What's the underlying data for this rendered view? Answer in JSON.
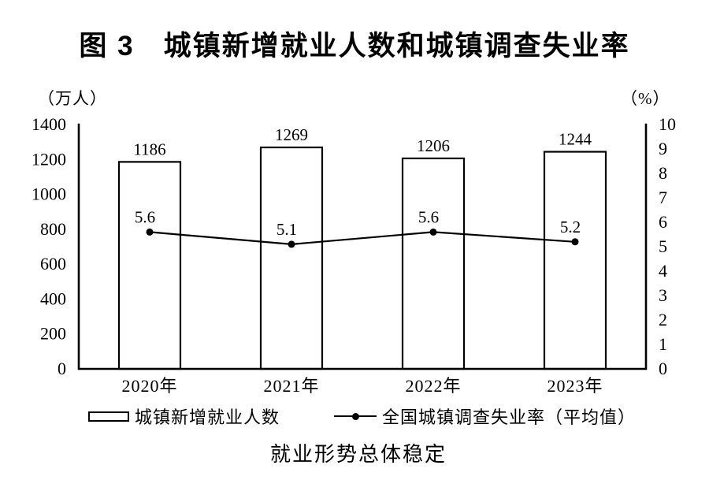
{
  "page": {
    "caption": "就业形势总体稳定"
  },
  "chart_data": {
    "type": "combo",
    "title": "图 3　城镇新增就业人数和城镇调查失业率",
    "categories": [
      "2020年",
      "2021年",
      "2022年",
      "2023年"
    ],
    "series": [
      {
        "name": "城镇新增就业人数",
        "type": "bar",
        "axis": "left",
        "values": [
          1186,
          1269,
          1206,
          1244
        ]
      },
      {
        "name": "全国城镇调查失业率（平均值）",
        "type": "line",
        "axis": "right",
        "values": [
          5.6,
          5.1,
          5.6,
          5.2
        ]
      }
    ],
    "left_axis": {
      "label": "（万人）",
      "min": 0,
      "max": 1400,
      "ticks": [
        0,
        200,
        400,
        600,
        800,
        1000,
        1200,
        1400
      ]
    },
    "right_axis": {
      "label": "（%）",
      "min": 0,
      "max": 10,
      "ticks": [
        0,
        1,
        2,
        3,
        4,
        5,
        6,
        7,
        8,
        9,
        10
      ]
    },
    "legend_position": "bottom",
    "grid": false,
    "colors": {
      "stroke": "#000000",
      "bar_fill": "#ffffff",
      "background": "#ffffff"
    }
  }
}
